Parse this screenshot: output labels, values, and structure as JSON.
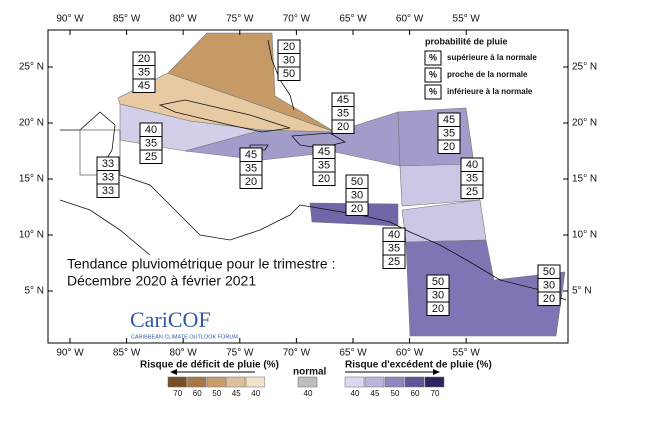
{
  "title": [
    "Tendance pluviométrique pour le trimestre :",
    "Décembre 2020 à février 2021"
  ],
  "logo": {
    "name": "CariCOF",
    "subtitle": "CARIBBEAN CLIMATE OUTLOOK FORUM"
  },
  "lon_ticks": [
    "90° W",
    "85° W",
    "80° W",
    "75° W",
    "70° W",
    "65° W",
    "60° W",
    "55° W"
  ],
  "lat_ticks": [
    "25° N",
    "20° N",
    "15° N",
    "10° N",
    "5° N"
  ],
  "legend": {
    "title": "probabilité de pluie",
    "symbol": "%",
    "items": [
      "supérieure à la normale",
      "proche de la normale",
      "inférieure à la normale"
    ]
  },
  "regions": [
    {
      "probs": [
        20,
        35,
        45
      ]
    },
    {
      "probs": [
        20,
        30,
        50
      ]
    },
    {
      "probs": [
        45,
        35,
        20
      ]
    },
    {
      "probs": [
        40,
        35,
        25
      ]
    },
    {
      "probs": [
        45,
        35,
        20
      ]
    },
    {
      "probs": [
        45,
        35,
        20
      ]
    },
    {
      "probs": [
        45,
        35,
        20
      ]
    },
    {
      "probs": [
        33,
        33,
        33
      ]
    },
    {
      "probs": [
        40,
        35,
        25
      ]
    },
    {
      "probs": [
        50,
        30,
        20
      ]
    },
    {
      "probs": [
        40,
        35,
        25
      ]
    },
    {
      "probs": [
        50,
        30,
        20
      ]
    },
    {
      "probs": [
        50,
        30,
        20
      ]
    }
  ],
  "colorbar": {
    "deficit": {
      "label": "Risque de déficit de pluie (%)",
      "levels": [
        70,
        60,
        50,
        45,
        40
      ],
      "colors": [
        "#7a4e25",
        "#a87948",
        "#c99e6e",
        "#e0c19c",
        "#f3e2cc"
      ]
    },
    "normal": {
      "label": "normal",
      "levels": [
        40
      ],
      "colors": [
        "#bdbdbd"
      ]
    },
    "excess": {
      "label": "Risque d'excédent de pluie (%)",
      "levels": [
        40,
        45,
        50,
        60,
        70
      ],
      "colors": [
        "#dcdaee",
        "#b9b4da",
        "#8f88c0",
        "#5f579c",
        "#2c2560"
      ]
    }
  }
}
